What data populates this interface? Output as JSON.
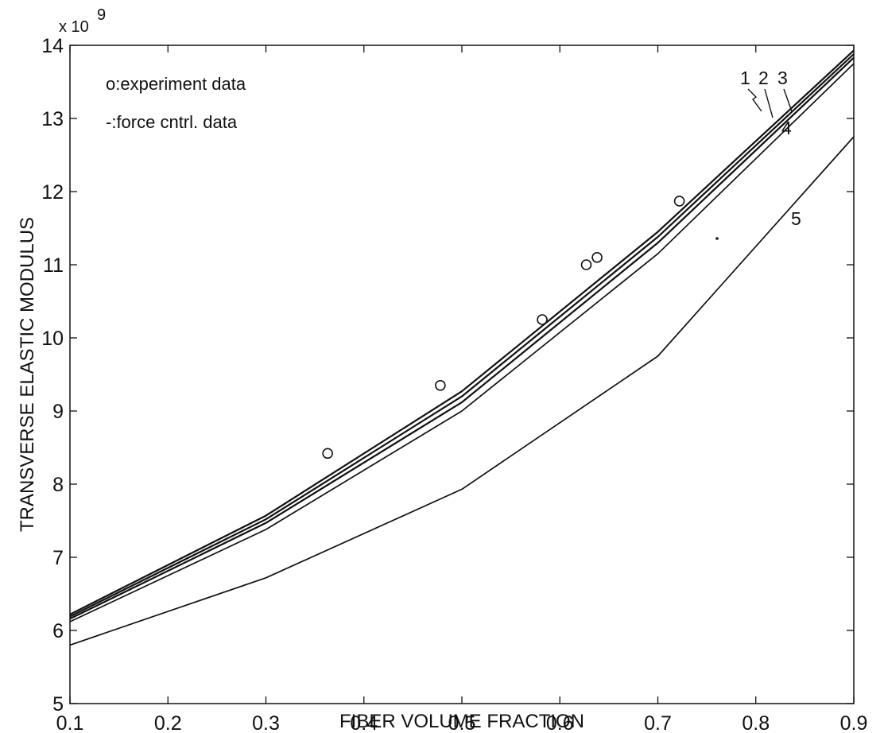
{
  "chart_data": {
    "type": "line",
    "title": "",
    "xlabel": "FIBER VOLUME FRACTION",
    "ylabel": "TRANSVERSE ELASTIC MODULUS",
    "y_multiplier_label": "x 10",
    "y_multiplier_exponent": "9",
    "xlim": [
      0.1,
      0.9
    ],
    "ylim": [
      5,
      14
    ],
    "x_ticks": [
      "0.1",
      "0.2",
      "0.3",
      "0.4",
      "0.5",
      "0.6",
      "0.7",
      "0.8",
      "0.9"
    ],
    "y_ticks": [
      "5",
      "6",
      "7",
      "8",
      "9",
      "10",
      "11",
      "12",
      "13",
      "14"
    ],
    "grid": false,
    "legend": {
      "placement": "top-left",
      "entries": [
        "o:experiment data",
        "-:force cntrl. data"
      ]
    },
    "x": [
      0.1,
      0.3,
      0.5,
      0.7,
      0.9
    ],
    "series": [
      {
        "name": "1",
        "style": "line",
        "values": [
          6.22,
          7.57,
          9.27,
          11.45,
          13.93
        ]
      },
      {
        "name": "2",
        "style": "line",
        "values": [
          6.19,
          7.52,
          9.2,
          11.38,
          13.88
        ]
      },
      {
        "name": "3",
        "style": "line",
        "values": [
          6.16,
          7.47,
          9.12,
          11.3,
          13.83
        ]
      },
      {
        "name": "4",
        "style": "line",
        "values": [
          6.12,
          7.38,
          9.0,
          11.15,
          13.75
        ]
      },
      {
        "name": "5",
        "style": "line",
        "values": [
          5.8,
          6.72,
          7.93,
          9.75,
          12.75
        ]
      }
    ],
    "experiment_points": [
      {
        "x": 0.363,
        "y": 8.42
      },
      {
        "x": 0.478,
        "y": 9.35
      },
      {
        "x": 0.582,
        "y": 10.25
      },
      {
        "x": 0.627,
        "y": 11.0
      },
      {
        "x": 0.638,
        "y": 11.1
      },
      {
        "x": 0.722,
        "y": 11.87
      }
    ],
    "curve_labels": [
      "1",
      "2",
      "3",
      "4",
      "5"
    ]
  }
}
